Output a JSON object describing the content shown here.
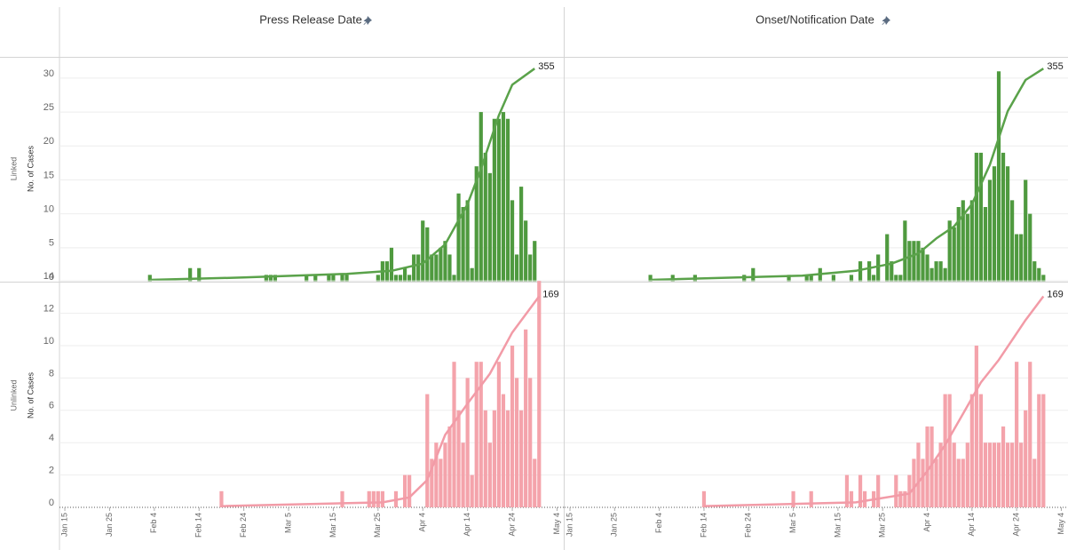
{
  "column_headers": [
    "Press Release Date",
    "Onset/Notification Date"
  ],
  "row_headers": [
    "Linked",
    "Unlinked"
  ],
  "y_axis_label": "No. of Cases",
  "chart_data": [
    {
      "type": "bar",
      "xlim": [
        -1.2,
        111.5
      ],
      "ylim": [
        0,
        33
      ],
      "y2lim": [
        0,
        373
      ],
      "yticks": [
        0,
        5,
        10,
        15,
        20,
        25,
        30
      ],
      "grid": true,
      "series": [
        {
          "type": "bar",
          "color": "#4f9a3f",
          "x": [
            19,
            28,
            30,
            45,
            46,
            47,
            54,
            56,
            59,
            60,
            62,
            63,
            70,
            71,
            72,
            73,
            74,
            75,
            76,
            77,
            78,
            79,
            80,
            81,
            82,
            83,
            84,
            85,
            86,
            87,
            88,
            89,
            90,
            91,
            92,
            93,
            94,
            95,
            96,
            97,
            98,
            99,
            100,
            101,
            102,
            103,
            104,
            105
          ],
          "values": [
            1,
            2,
            2,
            1,
            1,
            1,
            1,
            1,
            1,
            1,
            1,
            1,
            1,
            3,
            3,
            5,
            1,
            1,
            2,
            1,
            4,
            4,
            9,
            8,
            4,
            4,
            5,
            6,
            4,
            1,
            13,
            11,
            12,
            2,
            17,
            25,
            19,
            16,
            24,
            24,
            25,
            24,
            12,
            4,
            14,
            9,
            4,
            6
          ]
        },
        {
          "type": "line",
          "axis": "y2",
          "color": "#5aa24a",
          "x": [
            19,
            40,
            63,
            73,
            80,
            85,
            90,
            93,
            97,
            100,
            105
          ],
          "values": [
            3,
            7,
            13,
            18,
            30,
            62,
            129,
            188,
            277,
            328,
            355
          ]
        }
      ]
    },
    {
      "type": "bar",
      "xlim": [
        -1.2,
        111.5
      ],
      "ylim": [
        0,
        33
      ],
      "y2lim": [
        0,
        373
      ],
      "grid": true,
      "series": [
        {
          "type": "bar",
          "color": "#4f9a3f",
          "x": [
            18,
            23,
            28,
            39,
            41,
            49,
            53,
            54,
            56,
            59,
            63,
            65,
            67,
            68,
            69,
            71,
            72,
            73,
            74,
            75,
            76,
            77,
            78,
            79,
            80,
            81,
            82,
            83,
            84,
            85,
            86,
            87,
            88,
            89,
            90,
            91,
            92,
            93,
            94,
            95,
            96,
            97,
            98,
            99,
            100,
            101,
            102,
            103,
            104,
            105,
            106
          ],
          "values": [
            1,
            1,
            1,
            1,
            2,
            1,
            1,
            1,
            2,
            1,
            1,
            3,
            3,
            1,
            4,
            7,
            3,
            1,
            1,
            9,
            6,
            6,
            6,
            5,
            4,
            2,
            3,
            3,
            2,
            9,
            8,
            11,
            12,
            10,
            12,
            19,
            19,
            11,
            15,
            17,
            31,
            19,
            17,
            12,
            7,
            7,
            15,
            10,
            3,
            2,
            1
          ]
        },
        {
          "type": "line",
          "axis": "y2",
          "color": "#5aa24a",
          "x": [
            18,
            52,
            64,
            72,
            78,
            82,
            86,
            90,
            94,
            98,
            102,
            106
          ],
          "values": [
            3,
            10,
            18,
            30,
            47,
            72,
            92,
            129,
            195,
            284,
            336,
            355
          ]
        }
      ]
    },
    {
      "type": "bar",
      "xlim": [
        -1.2,
        111.5
      ],
      "ylim": [
        0,
        13.9
      ],
      "y2lim": [
        0,
        180
      ],
      "yticks": [
        0,
        2,
        4,
        6,
        8,
        10,
        12,
        14
      ],
      "grid": true,
      "xticks": [
        {
          "value": 0,
          "label": "Jan 15"
        },
        {
          "value": 10,
          "label": "Jan 25"
        },
        {
          "value": 20,
          "label": "Feb 4"
        },
        {
          "value": 30,
          "label": "Feb 14"
        },
        {
          "value": 40,
          "label": "Feb 24"
        },
        {
          "value": 50,
          "label": "Mar 5"
        },
        {
          "value": 60,
          "label": "Mar 15"
        },
        {
          "value": 70,
          "label": "Mar 25"
        },
        {
          "value": 80,
          "label": "Apr 4"
        },
        {
          "value": 90,
          "label": "Apr 14"
        },
        {
          "value": 100,
          "label": "Apr 24"
        },
        {
          "value": 110,
          "label": "May 4"
        }
      ],
      "series": [
        {
          "type": "bar",
          "color": "#f4a3ab",
          "x": [
            35,
            62,
            68,
            69,
            70,
            71,
            74,
            76,
            77,
            81,
            82,
            83,
            84,
            85,
            86,
            87,
            88,
            89,
            90,
            91,
            92,
            93,
            94,
            95,
            96,
            97,
            98,
            99,
            100,
            101,
            102,
            103,
            104,
            105,
            106
          ],
          "values": [
            1,
            1,
            1,
            1,
            1,
            1,
            1,
            2,
            2,
            7,
            3,
            4,
            3,
            4,
            5,
            9,
            6,
            4,
            8,
            2,
            9,
            9,
            6,
            4,
            6,
            9,
            7,
            6,
            10,
            8,
            6,
            11,
            8,
            3,
            14
          ]
        },
        {
          "type": "line",
          "axis": "y2",
          "color": "#f29ba7",
          "x": [
            35,
            71,
            77,
            81,
            85,
            90,
            95,
            100,
            106
          ],
          "values": [
            1,
            4,
            8,
            22,
            58,
            83,
            107,
            140,
            169
          ]
        }
      ]
    },
    {
      "type": "bar",
      "xlim": [
        -1.2,
        111.5
      ],
      "ylim": [
        0,
        13.9
      ],
      "y2lim": [
        0,
        180
      ],
      "grid": true,
      "xticks": [
        {
          "value": 0,
          "label": "Jan 15"
        },
        {
          "value": 10,
          "label": "Jan 25"
        },
        {
          "value": 20,
          "label": "Feb 4"
        },
        {
          "value": 30,
          "label": "Feb 14"
        },
        {
          "value": 40,
          "label": "Feb 24"
        },
        {
          "value": 50,
          "label": "Mar 5"
        },
        {
          "value": 60,
          "label": "Mar 15"
        },
        {
          "value": 70,
          "label": "Mar 25"
        },
        {
          "value": 80,
          "label": "Apr 4"
        },
        {
          "value": 90,
          "label": "Apr 14"
        },
        {
          "value": 100,
          "label": "Apr 24"
        },
        {
          "value": 110,
          "label": "May 4"
        }
      ],
      "series": [
        {
          "type": "bar",
          "color": "#f4a3ab",
          "x": [
            30,
            50,
            54,
            62,
            63,
            65,
            66,
            68,
            69,
            73,
            74,
            75,
            76,
            77,
            78,
            79,
            80,
            81,
            82,
            83,
            84,
            85,
            86,
            87,
            88,
            89,
            90,
            91,
            92,
            93,
            94,
            95,
            96,
            97,
            98,
            99,
            100,
            101,
            102,
            103,
            104,
            105,
            106
          ],
          "values": [
            1,
            1,
            1,
            2,
            1,
            2,
            1,
            1,
            2,
            2,
            1,
            1,
            2,
            3,
            4,
            3,
            5,
            5,
            3,
            4,
            7,
            7,
            4,
            3,
            3,
            4,
            7,
            10,
            7,
            4,
            4,
            4,
            4,
            5,
            4,
            4,
            9,
            4,
            6,
            9,
            3,
            7,
            7
          ]
        },
        {
          "type": "line",
          "axis": "y2",
          "color": "#f29ba7",
          "x": [
            30,
            64,
            76,
            80,
            84,
            88,
            92,
            96,
            102,
            106
          ],
          "values": [
            1,
            4,
            11,
            29,
            50,
            75,
            100,
            118,
            150,
            169
          ]
        }
      ]
    }
  ]
}
